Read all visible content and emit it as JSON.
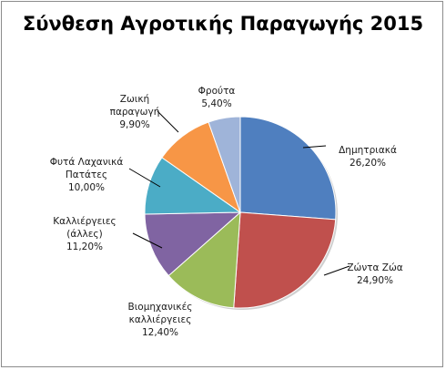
{
  "chart_data": {
    "type": "pie",
    "title": "Σύνθεση Αγροτικής Παραγωγής 2015",
    "start_angle_deg": 0,
    "direction": "clockwise",
    "slices": [
      {
        "label_lines": [
          "Δημητριακά"
        ],
        "value_label": "26,20%",
        "value": 26.2,
        "color": "#4f7fbf"
      },
      {
        "label_lines": [
          "Ζώντα Ζώα"
        ],
        "value_label": "24,90%",
        "value": 24.9,
        "color": "#c0504d"
      },
      {
        "label_lines": [
          "Βιομηχανικές",
          "καλλιέργειες"
        ],
        "value_label": "12,40%",
        "value": 12.4,
        "color": "#9bbb59"
      },
      {
        "label_lines": [
          "Καλλιέργειες",
          "(άλλες)"
        ],
        "value_label": "11,20%",
        "value": 11.2,
        "color": "#8064a2"
      },
      {
        "label_lines": [
          "Φυτά Λαχανικά",
          "Πατάτες"
        ],
        "value_label": "10,00%",
        "value": 10.0,
        "color": "#4bacc6"
      },
      {
        "label_lines": [
          "Ζωική",
          "παραγωγή"
        ],
        "value_label": "9,90%",
        "value": 9.9,
        "color": "#f79646"
      },
      {
        "label_lines": [
          "Φρούτα"
        ],
        "value_label": "5,40%",
        "value": 5.4,
        "color": "#9fb4d9"
      }
    ]
  }
}
